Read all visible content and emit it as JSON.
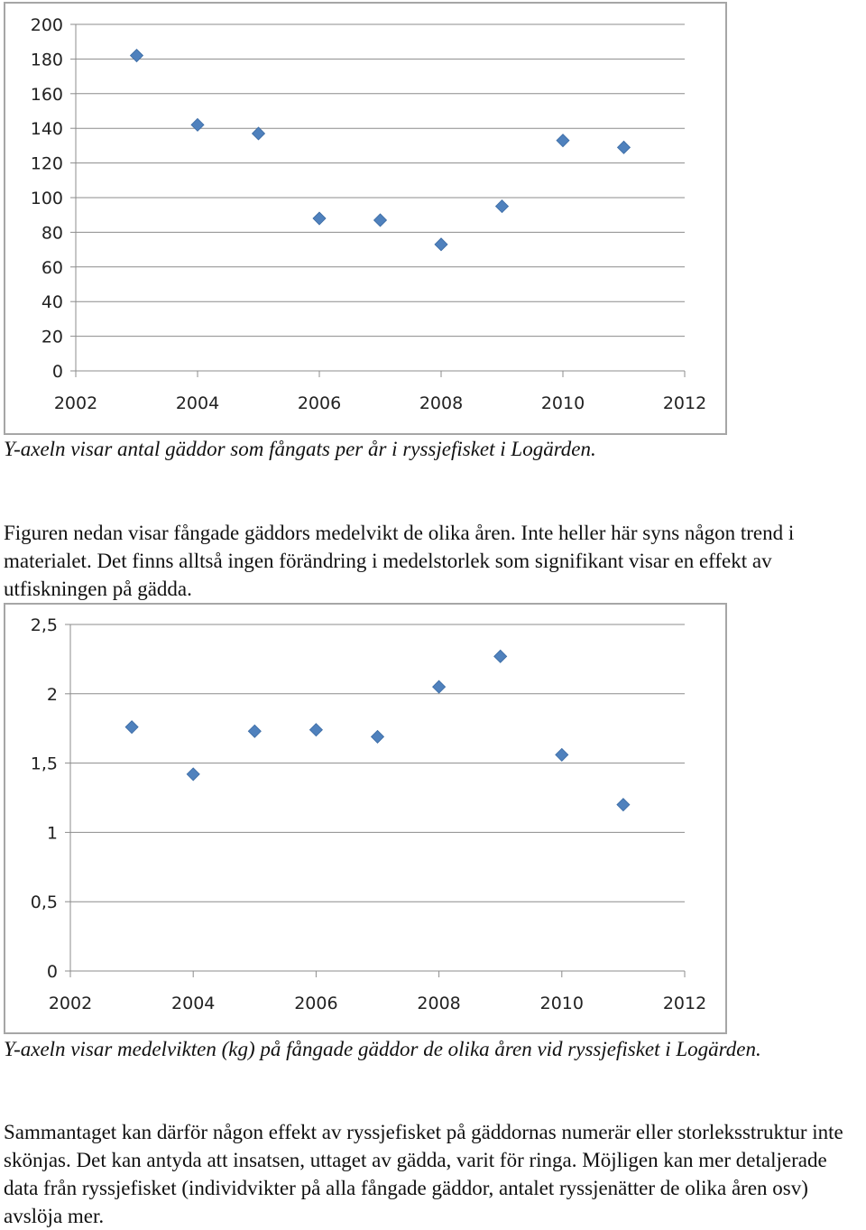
{
  "chart_data": [
    {
      "type": "scatter",
      "title": "",
      "xlabel": "",
      "ylabel": "",
      "x": [
        2003,
        2004,
        2005,
        2006,
        2007,
        2008,
        2009,
        2010,
        2011
      ],
      "y": [
        182,
        142,
        137,
        88,
        87,
        73,
        95,
        133,
        129
      ],
      "xlim": [
        2002,
        2012
      ],
      "ylim": [
        0,
        200
      ],
      "xticks": [
        "2002",
        "2004",
        "2006",
        "2008",
        "2010",
        "2012"
      ],
      "yticks": [
        "0",
        "20",
        "40",
        "60",
        "80",
        "100",
        "120",
        "140",
        "160",
        "180",
        "200"
      ],
      "grid": "horizontal",
      "marker": "diamond",
      "color": "#4f81bd"
    },
    {
      "type": "scatter",
      "title": "",
      "xlabel": "",
      "ylabel": "",
      "x": [
        2003,
        2004,
        2005,
        2006,
        2007,
        2008,
        2009,
        2010,
        2011
      ],
      "y": [
        1.76,
        1.42,
        1.73,
        1.74,
        1.69,
        2.05,
        2.27,
        1.56,
        1.2
      ],
      "xlim": [
        2002,
        2012
      ],
      "ylim": [
        0,
        2.5
      ],
      "xticks": [
        "2002",
        "2004",
        "2006",
        "2008",
        "2010",
        "2012"
      ],
      "yticks": [
        "0",
        "0,5",
        "1",
        "1,5",
        "2",
        "2,5"
      ],
      "grid": "horizontal",
      "marker": "diamond",
      "color": "#4f81bd"
    }
  ],
  "captions": {
    "chart1": "Y-axeln visar antal gäddor som fångats per år i ryssjefisket i Logärden.",
    "chart2": "Y-axeln visar medelvikten (kg) på fångade gäddor de olika åren vid ryssjefisket i Logärden."
  },
  "paragraphs": {
    "intro": "Figuren nedan visar fångade gäddors medelvikt de olika åren. Inte heller här syns någon trend i materialet. Det finns alltså ingen förändring i medelstorlek som signifikant visar en effekt av utfiskningen på gädda.",
    "summary": "Sammantaget kan därför någon effekt av ryssjefisket på gäddornas numerär eller storleksstruktur inte skönjas. Det kan antyda att insatsen, uttaget av gädda, varit för ringa. Möjligen kan mer detaljerade data från ryssjefisket (individvikter på alla fångade gäddor, antalet ryssjenätter de olika åren osv) avslöja mer."
  }
}
